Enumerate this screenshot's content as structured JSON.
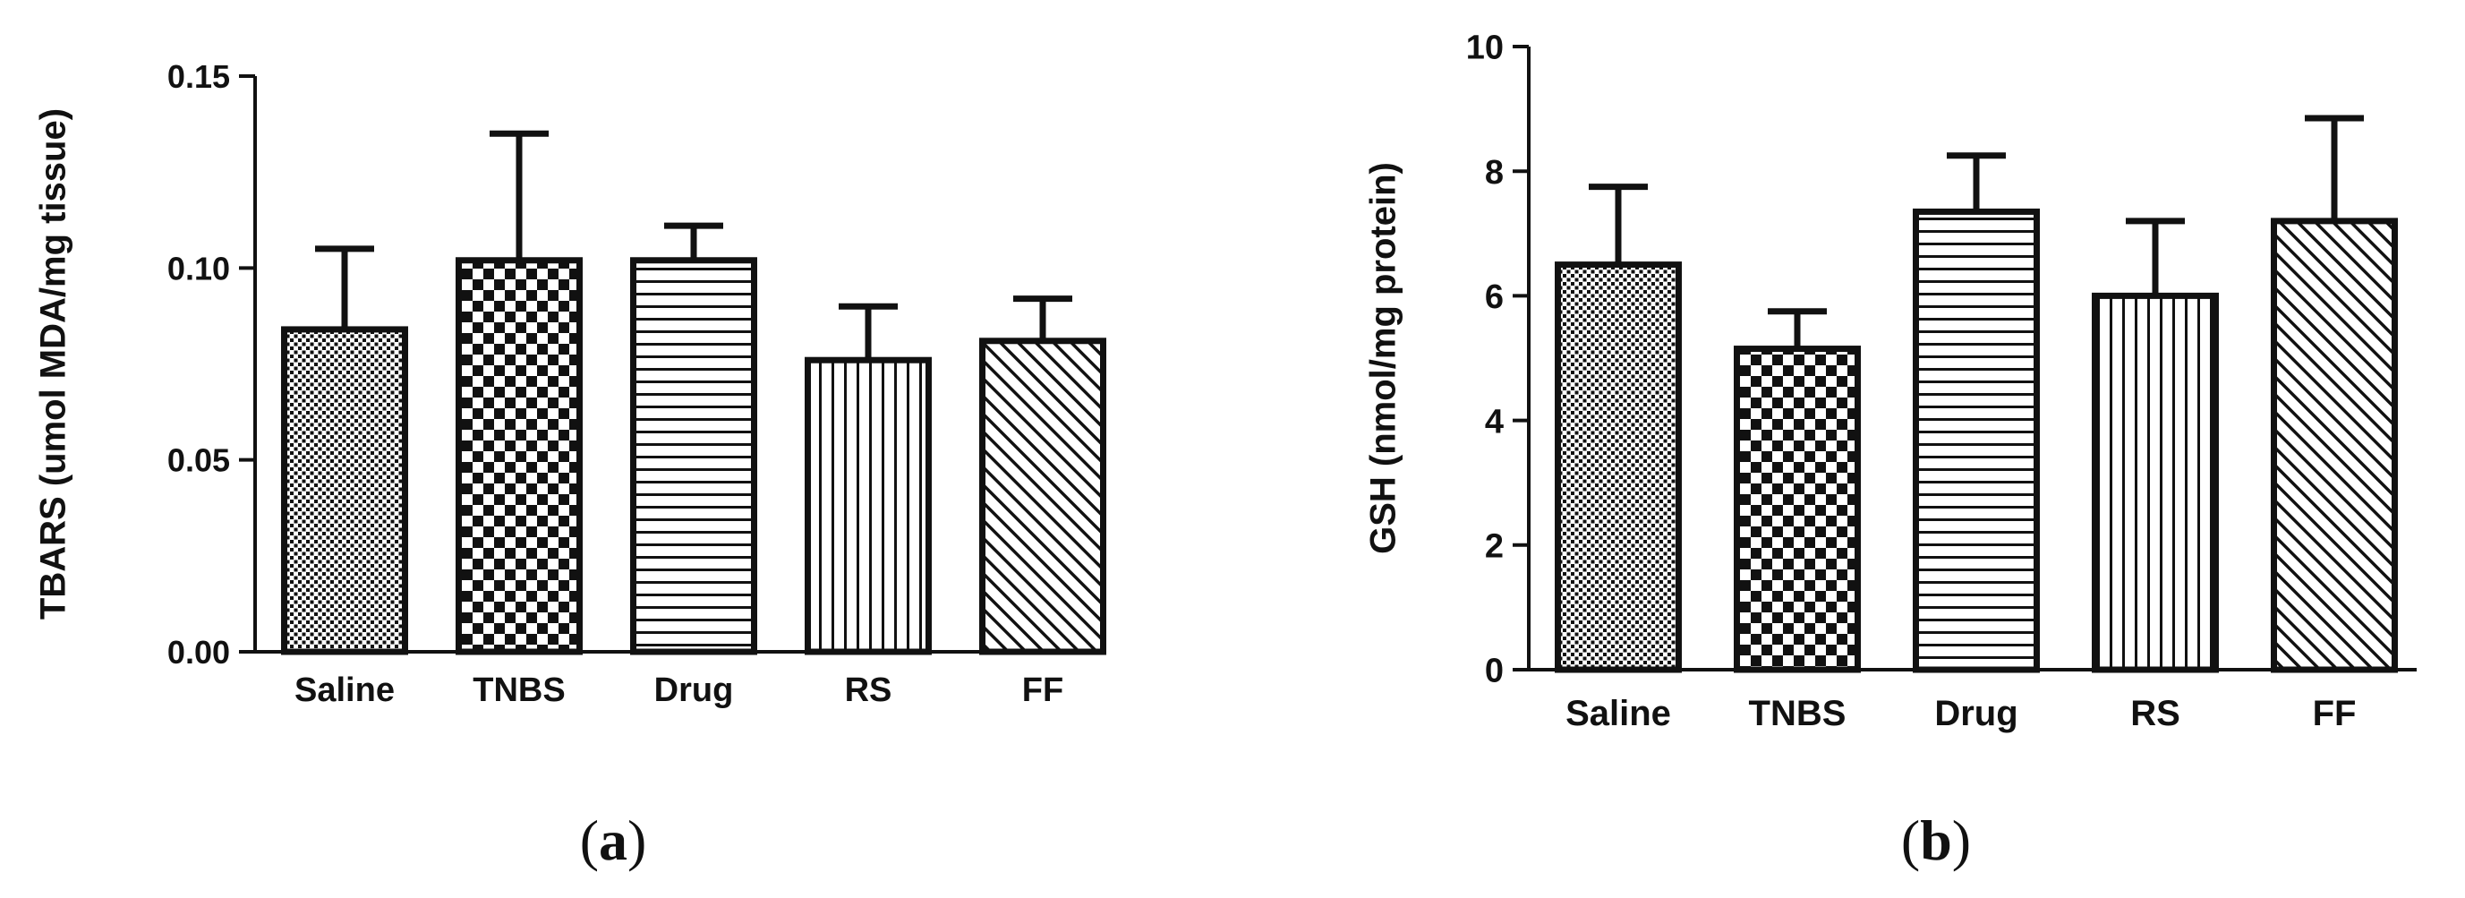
{
  "chart_data": [
    {
      "type": "bar",
      "panel_label": "a",
      "categories": [
        "Saline",
        "TNBS",
        "Drug",
        "RS",
        "FF"
      ],
      "values": [
        0.084,
        0.102,
        0.102,
        0.076,
        0.081
      ],
      "errors": [
        0.021,
        0.033,
        0.009,
        0.014,
        0.011
      ],
      "ylabel": "TBARS (umol MDA/mg tissue)",
      "ylim": [
        0,
        0.15
      ],
      "yticks": [
        "0.00",
        "0.05",
        "0.10",
        "0.15"
      ],
      "patterns": [
        "dots",
        "checker",
        "hlines",
        "vlines",
        "diag"
      ],
      "grid": false
    },
    {
      "type": "bar",
      "panel_label": "b",
      "categories": [
        "Saline",
        "TNBS",
        "Drug",
        "RS",
        "FF"
      ],
      "values": [
        6.5,
        5.15,
        7.35,
        6.0,
        7.2
      ],
      "errors": [
        1.25,
        0.6,
        0.9,
        1.2,
        1.65
      ],
      "ylabel": "GSH (nmol/mg protein)",
      "ylim": [
        0,
        10
      ],
      "yticks": [
        "0",
        "2",
        "4",
        "6",
        "8",
        "10"
      ],
      "patterns": [
        "dots",
        "checker",
        "hlines",
        "vlines",
        "diag"
      ],
      "grid": false
    }
  ],
  "style": {
    "ink": "#111111",
    "background": "#ffffff"
  }
}
